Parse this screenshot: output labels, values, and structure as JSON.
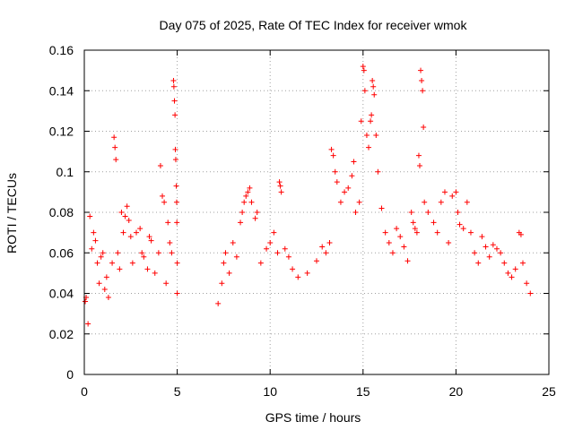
{
  "chart_data": {
    "type": "scatter",
    "title": "Day 075 of 2025, Rate Of TEC Index for receiver wmok",
    "xlabel": "GPS time / hours",
    "ylabel": "ROTI / TECUs",
    "xlim": [
      0,
      25
    ],
    "ylim": [
      0,
      0.16
    ],
    "x_ticks": [
      "0",
      "5",
      "10",
      "15",
      "20",
      "25"
    ],
    "y_ticks": [
      "0",
      "0.02",
      "0.04",
      "0.06",
      "0.08",
      "0.1",
      "0.12",
      "0.14",
      "0.16"
    ],
    "grid": true,
    "marker": "plus",
    "color": "#ff0000",
    "series": [
      {
        "points": [
          [
            0.05,
            0.036
          ],
          [
            0.1,
            0.038
          ],
          [
            0.2,
            0.025
          ],
          [
            0.3,
            0.078
          ],
          [
            0.4,
            0.062
          ],
          [
            0.5,
            0.07
          ],
          [
            0.6,
            0.066
          ],
          [
            0.7,
            0.055
          ],
          [
            0.8,
            0.045
          ],
          [
            0.9,
            0.058
          ],
          [
            1.0,
            0.06
          ],
          [
            1.1,
            0.042
          ],
          [
            1.2,
            0.048
          ],
          [
            1.3,
            0.038
          ],
          [
            1.5,
            0.055
          ],
          [
            1.6,
            0.117
          ],
          [
            1.65,
            0.112
          ],
          [
            1.7,
            0.106
          ],
          [
            1.8,
            0.06
          ],
          [
            1.9,
            0.052
          ],
          [
            2.0,
            0.08
          ],
          [
            2.1,
            0.07
          ],
          [
            2.2,
            0.078
          ],
          [
            2.3,
            0.083
          ],
          [
            2.4,
            0.076
          ],
          [
            2.5,
            0.068
          ],
          [
            2.6,
            0.055
          ],
          [
            2.8,
            0.07
          ],
          [
            3.0,
            0.072
          ],
          [
            3.1,
            0.06
          ],
          [
            3.2,
            0.058
          ],
          [
            3.4,
            0.052
          ],
          [
            3.5,
            0.068
          ],
          [
            3.6,
            0.066
          ],
          [
            3.8,
            0.05
          ],
          [
            4.0,
            0.06
          ],
          [
            4.1,
            0.103
          ],
          [
            4.2,
            0.088
          ],
          [
            4.3,
            0.085
          ],
          [
            4.4,
            0.045
          ],
          [
            4.5,
            0.075
          ],
          [
            4.6,
            0.065
          ],
          [
            4.7,
            0.06
          ],
          [
            4.8,
            0.145
          ],
          [
            4.82,
            0.142
          ],
          [
            4.85,
            0.135
          ],
          [
            4.88,
            0.128
          ],
          [
            4.9,
            0.111
          ],
          [
            4.92,
            0.106
          ],
          [
            4.95,
            0.093
          ],
          [
            4.97,
            0.085
          ],
          [
            4.98,
            0.075
          ],
          [
            5.0,
            0.055
          ],
          [
            5.0,
            0.04
          ],
          [
            7.2,
            0.035
          ],
          [
            7.4,
            0.045
          ],
          [
            7.5,
            0.055
          ],
          [
            7.6,
            0.06
          ],
          [
            7.8,
            0.05
          ],
          [
            8.0,
            0.065
          ],
          [
            8.2,
            0.058
          ],
          [
            8.4,
            0.075
          ],
          [
            8.5,
            0.08
          ],
          [
            8.6,
            0.085
          ],
          [
            8.7,
            0.088
          ],
          [
            8.8,
            0.09
          ],
          [
            8.9,
            0.092
          ],
          [
            9.0,
            0.085
          ],
          [
            9.2,
            0.077
          ],
          [
            9.3,
            0.08
          ],
          [
            9.5,
            0.055
          ],
          [
            9.8,
            0.062
          ],
          [
            10.0,
            0.065
          ],
          [
            10.2,
            0.07
          ],
          [
            10.4,
            0.06
          ],
          [
            10.5,
            0.095
          ],
          [
            10.55,
            0.093
          ],
          [
            10.6,
            0.09
          ],
          [
            10.8,
            0.062
          ],
          [
            11.0,
            0.058
          ],
          [
            11.2,
            0.052
          ],
          [
            11.5,
            0.048
          ],
          [
            12.0,
            0.05
          ],
          [
            12.5,
            0.056
          ],
          [
            12.8,
            0.063
          ],
          [
            13.0,
            0.06
          ],
          [
            13.2,
            0.065
          ],
          [
            13.3,
            0.111
          ],
          [
            13.4,
            0.108
          ],
          [
            13.5,
            0.1
          ],
          [
            13.6,
            0.095
          ],
          [
            13.8,
            0.085
          ],
          [
            14.0,
            0.09
          ],
          [
            14.2,
            0.092
          ],
          [
            14.4,
            0.098
          ],
          [
            14.5,
            0.105
          ],
          [
            14.6,
            0.08
          ],
          [
            14.8,
            0.085
          ],
          [
            14.9,
            0.125
          ],
          [
            15.0,
            0.152
          ],
          [
            15.05,
            0.15
          ],
          [
            15.1,
            0.14
          ],
          [
            15.2,
            0.118
          ],
          [
            15.3,
            0.112
          ],
          [
            15.4,
            0.125
          ],
          [
            15.45,
            0.128
          ],
          [
            15.5,
            0.145
          ],
          [
            15.55,
            0.142
          ],
          [
            15.6,
            0.138
          ],
          [
            15.7,
            0.118
          ],
          [
            15.8,
            0.1
          ],
          [
            16.0,
            0.082
          ],
          [
            16.2,
            0.07
          ],
          [
            16.4,
            0.065
          ],
          [
            16.6,
            0.06
          ],
          [
            16.8,
            0.072
          ],
          [
            17.0,
            0.068
          ],
          [
            17.2,
            0.063
          ],
          [
            17.4,
            0.056
          ],
          [
            17.6,
            0.08
          ],
          [
            17.7,
            0.075
          ],
          [
            17.8,
            0.072
          ],
          [
            17.9,
            0.07
          ],
          [
            18.0,
            0.108
          ],
          [
            18.05,
            0.103
          ],
          [
            18.1,
            0.15
          ],
          [
            18.15,
            0.145
          ],
          [
            18.2,
            0.14
          ],
          [
            18.25,
            0.122
          ],
          [
            18.3,
            0.085
          ],
          [
            18.5,
            0.08
          ],
          [
            18.8,
            0.075
          ],
          [
            19.0,
            0.07
          ],
          [
            19.2,
            0.085
          ],
          [
            19.4,
            0.09
          ],
          [
            19.6,
            0.065
          ],
          [
            19.8,
            0.088
          ],
          [
            20.0,
            0.09
          ],
          [
            20.1,
            0.08
          ],
          [
            20.2,
            0.074
          ],
          [
            20.4,
            0.072
          ],
          [
            20.6,
            0.085
          ],
          [
            20.8,
            0.07
          ],
          [
            21.0,
            0.06
          ],
          [
            21.2,
            0.055
          ],
          [
            21.4,
            0.068
          ],
          [
            21.6,
            0.063
          ],
          [
            21.8,
            0.058
          ],
          [
            22.0,
            0.064
          ],
          [
            22.2,
            0.062
          ],
          [
            22.4,
            0.06
          ],
          [
            22.6,
            0.055
          ],
          [
            22.8,
            0.05
          ],
          [
            23.0,
            0.048
          ],
          [
            23.2,
            0.052
          ],
          [
            23.4,
            0.07
          ],
          [
            23.5,
            0.069
          ],
          [
            23.6,
            0.055
          ],
          [
            23.8,
            0.045
          ],
          [
            24.0,
            0.04
          ]
        ]
      }
    ]
  }
}
